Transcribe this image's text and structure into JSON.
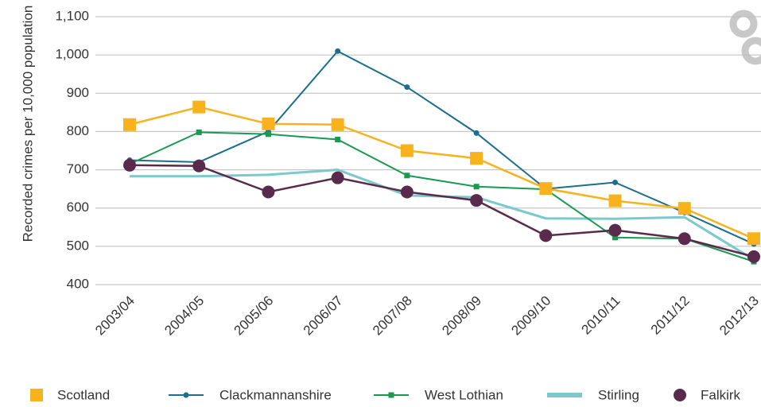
{
  "chart_data": {
    "type": "line",
    "y_label": "Recorded crimes per 10,000 population",
    "categories": [
      "2003/04",
      "2004/05",
      "2005/06",
      "2006/07",
      "2007/08",
      "2008/09",
      "2009/10",
      "2010/11",
      "2011/12",
      "2012/13"
    ],
    "series": [
      {
        "name": "Stirling",
        "color": "#7bc9cc",
        "marker": "none",
        "values": [
          683,
          683,
          687,
          700,
          633,
          628,
          573,
          572,
          576,
          465
        ]
      },
      {
        "name": "Clackmannanshire",
        "color": "#1b6e8c",
        "marker": "small-circle",
        "values": [
          725,
          720,
          800,
          1010,
          916,
          796,
          650,
          667,
          588,
          506
        ]
      },
      {
        "name": "West Lothian",
        "color": "#1a9a50",
        "marker": "small-square",
        "values": [
          715,
          798,
          793,
          779,
          685,
          656,
          649,
          523,
          520,
          460
        ]
      },
      {
        "name": "Falkirk",
        "color": "#5a2a4c",
        "marker": "large-circle",
        "values": [
          712,
          710,
          642,
          679,
          642,
          620,
          528,
          542,
          520,
          473
        ]
      },
      {
        "name": "Scotland",
        "color": "#f8b21d",
        "marker": "large-square",
        "values": [
          818,
          864,
          820,
          818,
          750,
          730,
          651,
          619,
          599,
          520
        ]
      }
    ],
    "legend_order": [
      4,
      1,
      2,
      0,
      3
    ],
    "ylim": [
      400,
      1100
    ],
    "yticks": [
      400,
      500,
      600,
      700,
      800,
      900,
      {
        "value": 1000,
        "label": "1,000"
      },
      {
        "value": 1100,
        "label": "1,100"
      }
    ],
    "grid": true
  }
}
